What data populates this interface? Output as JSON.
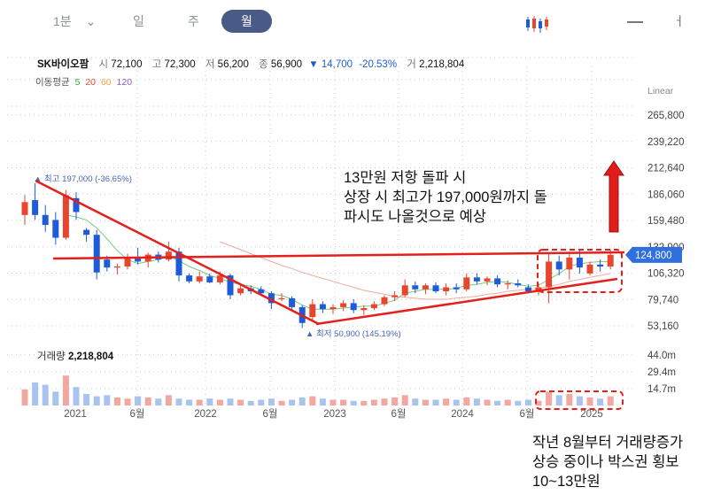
{
  "tabs": [
    {
      "label": "1분",
      "active": false
    },
    {
      "label": "일",
      "active": false
    },
    {
      "label": "주",
      "active": false
    },
    {
      "label": "월",
      "active": true
    }
  ],
  "stock": {
    "name": "SK바이오팜",
    "open_label": "시",
    "open": "72,100",
    "high_label": "고",
    "high": "72,300",
    "low_label": "저",
    "low": "56,200",
    "close_label": "종",
    "close": "56,900",
    "change": "▼ 14,700",
    "change_pct": "-20.53%",
    "volume_label": "거",
    "volume": "2,218,804"
  },
  "moving_average": {
    "label": "이동평균",
    "periods": [
      {
        "value": "5",
        "color": "#38b04a"
      },
      {
        "value": "20",
        "color": "#e8452e"
      },
      {
        "value": "60",
        "color": "#f0a23b"
      },
      {
        "value": "120",
        "color": "#8a5ad6"
      }
    ]
  },
  "scale_mode": "Linear",
  "volume_panel": {
    "label": "거래량",
    "value": "2,218,804"
  },
  "annotations": {
    "upper": [
      "13만원 저항 돌파 시",
      "상장 시 최고가 197,000원까지 돌",
      "파시도 나올것으로 예상"
    ],
    "lower": [
      "작년 8월부터 거래량증가",
      "상승 중이나 박스권 횡보",
      "10~13만원"
    ]
  },
  "chart_data": {
    "type": "candlestick",
    "title": "",
    "interval": "monthly",
    "x_tick_labels": [
      "2021",
      "6월",
      "2022",
      "6월",
      "2023",
      "6월",
      "2024",
      "6월",
      "2025"
    ],
    "y_tick_labels": [
      "265,800",
      "239,220",
      "212,640",
      "186,060",
      "159,480",
      "132,900",
      "106,320",
      "79,740",
      "53,160"
    ],
    "y_ticks": [
      265800,
      239220,
      212640,
      186060,
      159480,
      132900,
      106320,
      79740,
      53160
    ],
    "ylim": [
      35000,
      285000
    ],
    "current_price_label": "124,800",
    "current_price": 124800,
    "max_marker": {
      "text": "▲ 최고 197,000 (-36.65%)",
      "value": 197000
    },
    "min_marker": {
      "text": "▲ 최저 50,900 (145.19%)",
      "value": 50900
    },
    "volume_tick_labels": [
      "44.0m",
      "29.4m",
      "14.7m"
    ],
    "volume_ticks": [
      44.0,
      29.4,
      14.7
    ],
    "volume_ylim": [
      0,
      60
    ],
    "up_color": "#e8452e",
    "down_color": "#1e5bd8",
    "candles": [
      {
        "o": 165000,
        "h": 185000,
        "l": 155000,
        "c": 178000
      },
      {
        "o": 180000,
        "h": 197000,
        "l": 160000,
        "c": 165000
      },
      {
        "o": 165000,
        "h": 175000,
        "l": 148000,
        "c": 155000
      },
      {
        "o": 160000,
        "h": 168000,
        "l": 135000,
        "c": 142000
      },
      {
        "o": 142000,
        "h": 190000,
        "l": 140000,
        "c": 185000
      },
      {
        "o": 182000,
        "h": 188000,
        "l": 160000,
        "c": 168000
      },
      {
        "o": 150000,
        "h": 152000,
        "l": 138000,
        "c": 145000
      },
      {
        "o": 145000,
        "h": 150000,
        "l": 100000,
        "c": 107000
      },
      {
        "o": 120000,
        "h": 124000,
        "l": 108000,
        "c": 112000
      },
      {
        "o": 112000,
        "h": 116000,
        "l": 105000,
        "c": 113000
      },
      {
        "o": 113000,
        "h": 126000,
        "l": 110000,
        "c": 122000
      },
      {
        "o": 122000,
        "h": 132000,
        "l": 115000,
        "c": 118000
      },
      {
        "o": 118000,
        "h": 127000,
        "l": 112000,
        "c": 125000
      },
      {
        "o": 125000,
        "h": 128000,
        "l": 117000,
        "c": 120000
      },
      {
        "o": 120000,
        "h": 138000,
        "l": 118000,
        "c": 128000
      },
      {
        "o": 128000,
        "h": 132000,
        "l": 98000,
        "c": 104000
      },
      {
        "o": 104000,
        "h": 106000,
        "l": 96000,
        "c": 98000
      },
      {
        "o": 98000,
        "h": 108000,
        "l": 96000,
        "c": 103000
      },
      {
        "o": 103000,
        "h": 106000,
        "l": 96000,
        "c": 97000
      },
      {
        "o": 97000,
        "h": 108000,
        "l": 95000,
        "c": 104000
      },
      {
        "o": 104000,
        "h": 106000,
        "l": 80000,
        "c": 84000
      },
      {
        "o": 86000,
        "h": 95000,
        "l": 84000,
        "c": 91000
      },
      {
        "o": 91000,
        "h": 94000,
        "l": 85000,
        "c": 88000
      },
      {
        "o": 90000,
        "h": 93000,
        "l": 84000,
        "c": 86000
      },
      {
        "o": 86000,
        "h": 88000,
        "l": 70000,
        "c": 76000
      },
      {
        "o": 80000,
        "h": 86000,
        "l": 78000,
        "c": 81000
      },
      {
        "o": 81000,
        "h": 83000,
        "l": 68000,
        "c": 72000
      },
      {
        "o": 72000,
        "h": 74000,
        "l": 50900,
        "c": 56000
      },
      {
        "o": 62000,
        "h": 80000,
        "l": 58000,
        "c": 75000
      },
      {
        "o": 75000,
        "h": 78000,
        "l": 66000,
        "c": 70000
      },
      {
        "o": 70000,
        "h": 75000,
        "l": 65000,
        "c": 72000
      },
      {
        "o": 72000,
        "h": 79000,
        "l": 68000,
        "c": 76000
      },
      {
        "o": 76000,
        "h": 80000,
        "l": 66000,
        "c": 69000
      },
      {
        "o": 69000,
        "h": 74000,
        "l": 64000,
        "c": 71000
      },
      {
        "o": 71000,
        "h": 78000,
        "l": 69000,
        "c": 75000
      },
      {
        "o": 75000,
        "h": 84000,
        "l": 73000,
        "c": 82000
      },
      {
        "o": 82000,
        "h": 88000,
        "l": 78000,
        "c": 84000
      },
      {
        "o": 84000,
        "h": 100000,
        "l": 82000,
        "c": 94000
      },
      {
        "o": 94000,
        "h": 98000,
        "l": 86000,
        "c": 90000
      },
      {
        "o": 90000,
        "h": 96000,
        "l": 85000,
        "c": 94000
      },
      {
        "o": 94000,
        "h": 97000,
        "l": 86000,
        "c": 88000
      },
      {
        "o": 88000,
        "h": 96000,
        "l": 84000,
        "c": 92000
      },
      {
        "o": 92000,
        "h": 96000,
        "l": 86000,
        "c": 90000
      },
      {
        "o": 90000,
        "h": 106000,
        "l": 88000,
        "c": 102000
      },
      {
        "o": 102000,
        "h": 106000,
        "l": 95000,
        "c": 98000
      },
      {
        "o": 98000,
        "h": 103000,
        "l": 94000,
        "c": 101000
      },
      {
        "o": 101000,
        "h": 104000,
        "l": 92000,
        "c": 95000
      },
      {
        "o": 95000,
        "h": 99000,
        "l": 90000,
        "c": 96000
      },
      {
        "o": 96000,
        "h": 100000,
        "l": 92000,
        "c": 94000
      },
      {
        "o": 92000,
        "h": 95000,
        "l": 86000,
        "c": 88000
      },
      {
        "o": 88000,
        "h": 96000,
        "l": 84000,
        "c": 92000
      },
      {
        "o": 92000,
        "h": 126000,
        "l": 76000,
        "c": 118000
      },
      {
        "o": 118000,
        "h": 124000,
        "l": 104000,
        "c": 110000
      },
      {
        "o": 110000,
        "h": 128000,
        "l": 100000,
        "c": 122000
      },
      {
        "o": 122000,
        "h": 130000,
        "l": 106000,
        "c": 112000
      },
      {
        "o": 106000,
        "h": 118000,
        "l": 104000,
        "c": 115000
      },
      {
        "o": 115000,
        "h": 120000,
        "l": 108000,
        "c": 113000
      },
      {
        "o": 113000,
        "h": 130000,
        "l": 110000,
        "c": 124800
      }
    ],
    "volume": [
      14,
      20,
      18,
      12,
      26,
      16,
      10,
      8,
      9,
      7,
      6,
      8,
      7,
      6,
      9,
      6,
      5,
      5,
      6,
      5,
      6,
      5,
      4,
      5,
      6,
      4,
      5,
      7,
      8,
      6,
      5,
      5,
      4,
      4,
      5,
      6,
      7,
      9,
      6,
      5,
      5,
      6,
      5,
      7,
      6,
      5,
      4,
      5,
      4,
      5,
      4,
      12,
      9,
      10,
      8,
      7,
      6,
      8
    ],
    "ma5": [
      null,
      null,
      null,
      null,
      165000,
      163000,
      160000,
      152000,
      141000,
      129000,
      120000,
      116000,
      118000,
      120000,
      123000,
      119000,
      113000,
      109000,
      104000,
      101000,
      97000,
      95000,
      93000,
      90000,
      85000,
      84000,
      80000,
      74000,
      70000,
      70000,
      70000,
      71000,
      72000,
      73000,
      73000,
      76000,
      79000,
      86000,
      88000,
      90000,
      90000,
      90000,
      91000,
      94000,
      95000,
      97000,
      98000,
      97000,
      95000,
      93000,
      94000,
      100000,
      106000,
      113000,
      116000,
      117000,
      118000,
      118000
    ],
    "ma20": [
      null,
      null,
      null,
      null,
      null,
      null,
      null,
      null,
      null,
      null,
      null,
      null,
      null,
      null,
      null,
      null,
      null,
      null,
      null,
      138000,
      134000,
      130000,
      126000,
      122000,
      118000,
      114000,
      111000,
      107000,
      104000,
      101000,
      98000,
      95000,
      92000,
      89000,
      87000,
      85000,
      83000,
      82000,
      81000,
      80000,
      80000,
      80000,
      81000,
      82000,
      83000,
      85000,
      86000,
      88000,
      89000,
      90000,
      91000,
      93000,
      95000,
      98000,
      100000,
      102000,
      104000,
      106000
    ]
  }
}
